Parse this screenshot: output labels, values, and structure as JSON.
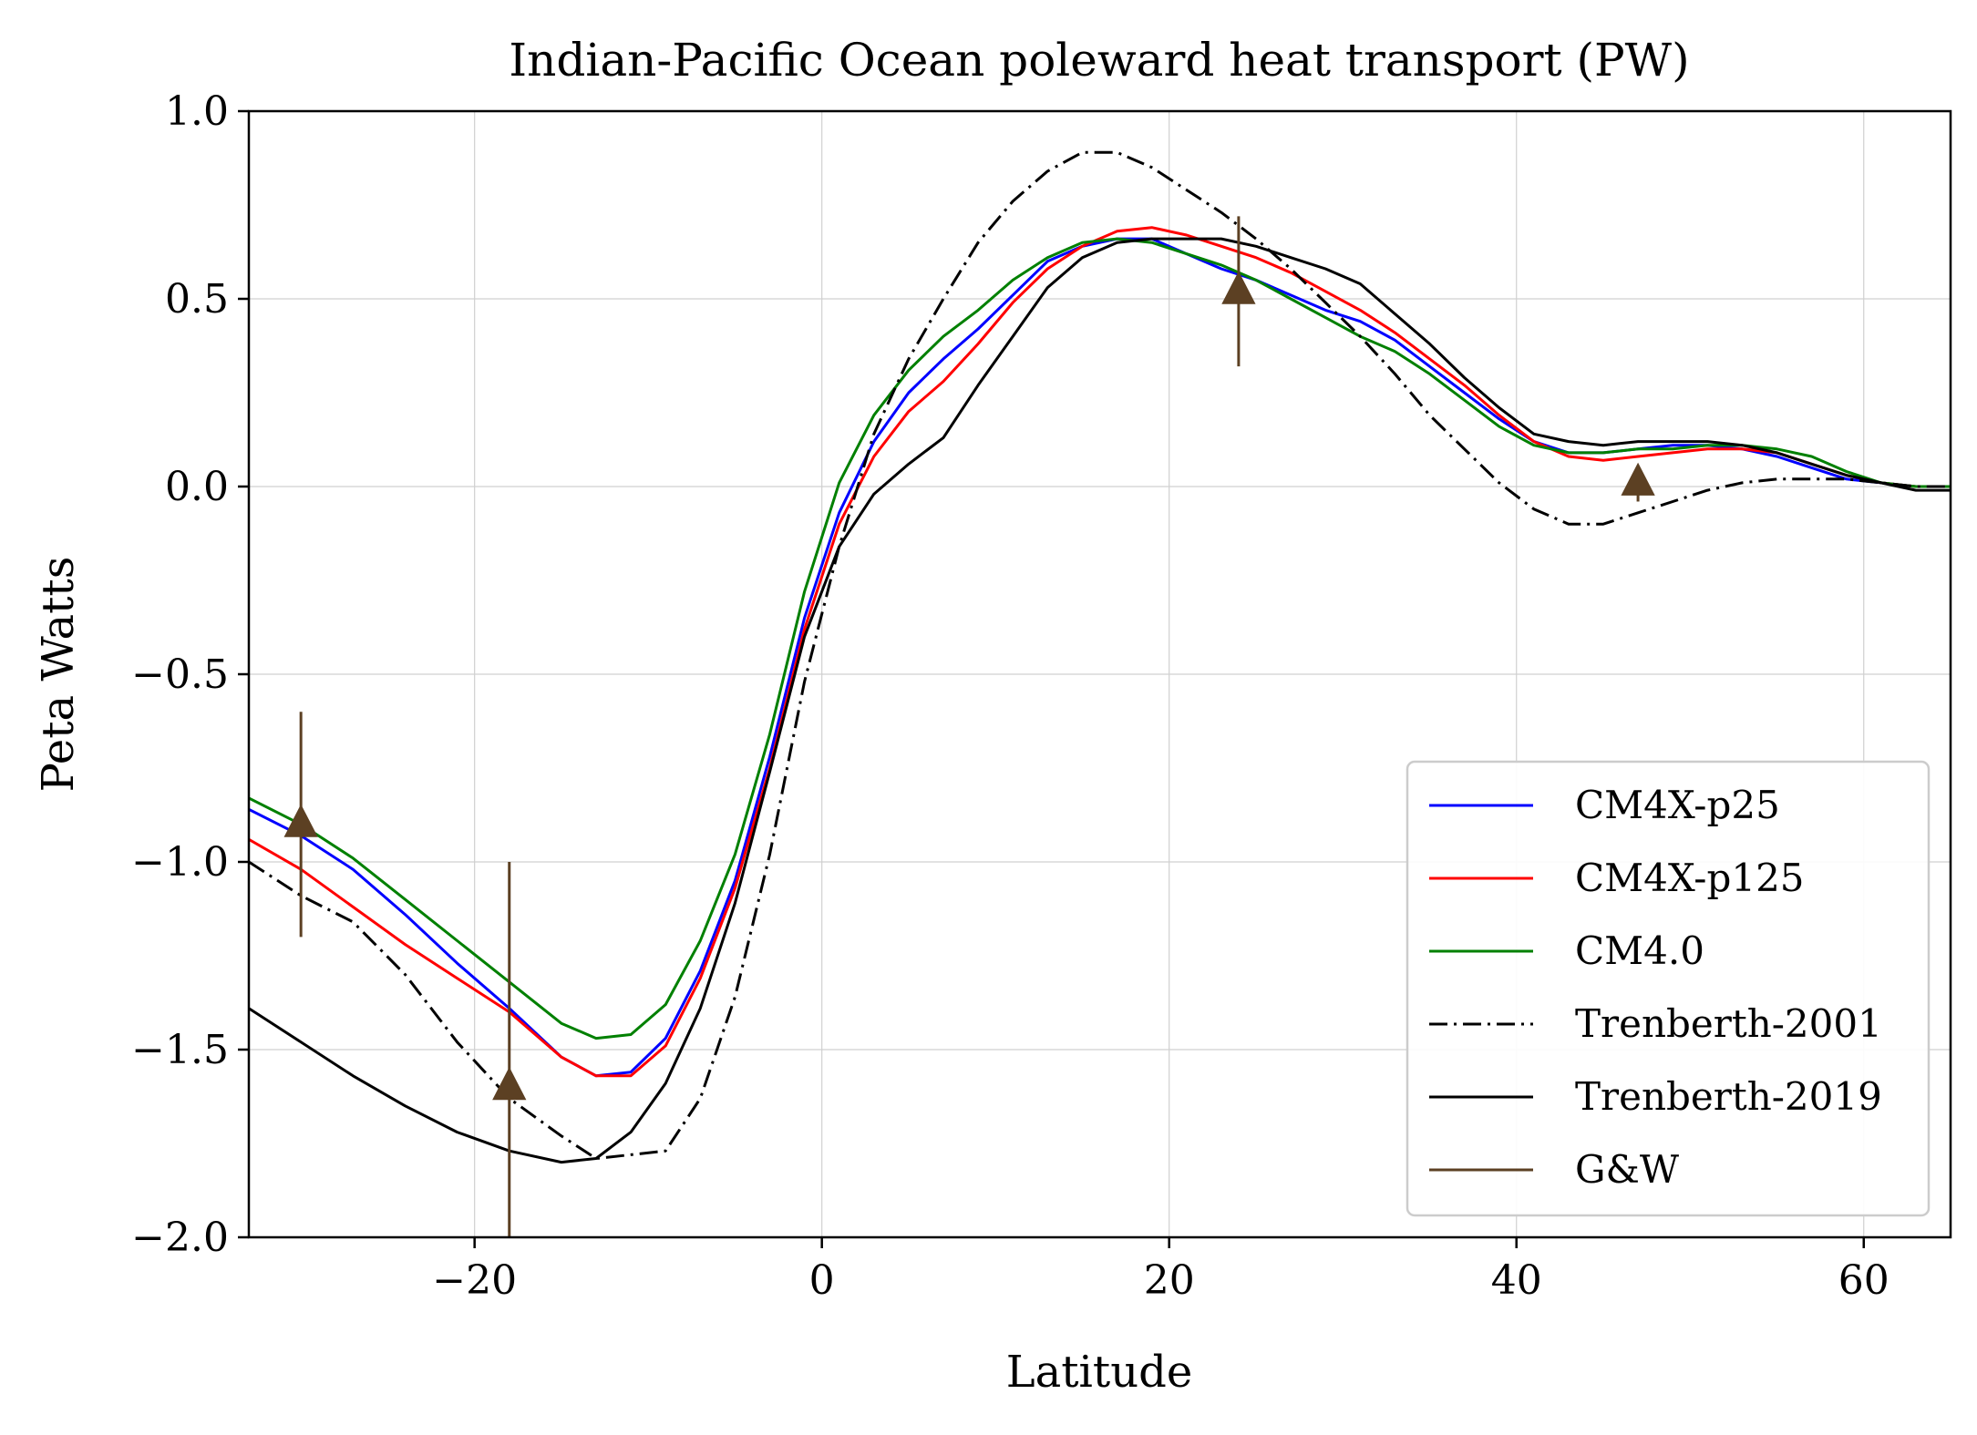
{
  "chart_data": {
    "type": "line",
    "title": "Indian-Pacific Ocean poleward heat transport (PW)",
    "xlabel": "Latitude",
    "ylabel": "Peta Watts",
    "xlim": [
      -33,
      65
    ],
    "ylim": [
      -2.0,
      1.0
    ],
    "xticks": [
      -20,
      0,
      20,
      40,
      60
    ],
    "xtick_labels": [
      "−20",
      "0",
      "20",
      "40",
      "60"
    ],
    "yticks": [
      1.0,
      0.5,
      0.0,
      -0.5,
      -1.0,
      -1.5,
      -2.0
    ],
    "ytick_labels": [
      "1.0",
      "0.5",
      "0.0",
      "−0.5",
      "−1.0",
      "−1.5",
      "−2.0"
    ],
    "grid": true,
    "legend_position": "lower-right",
    "series": [
      {
        "name": "CM4X-p25",
        "color": "#0000ff",
        "style": "solid",
        "x": [
          -33,
          -30,
          -27,
          -24,
          -21,
          -18,
          -15,
          -13,
          -11,
          -9,
          -7,
          -5,
          -3,
          -1,
          1,
          3,
          5,
          7,
          9,
          11,
          13,
          15,
          17,
          19,
          21,
          23,
          25,
          27,
          29,
          31,
          33,
          35,
          37,
          39,
          41,
          43,
          45,
          47,
          49,
          51,
          53,
          55,
          57,
          59,
          61,
          63,
          65
        ],
        "y": [
          -0.86,
          -0.93,
          -1.02,
          -1.14,
          -1.27,
          -1.39,
          -1.52,
          -1.57,
          -1.56,
          -1.47,
          -1.29,
          -1.05,
          -0.72,
          -0.35,
          -0.07,
          0.12,
          0.25,
          0.34,
          0.42,
          0.51,
          0.6,
          0.64,
          0.66,
          0.66,
          0.62,
          0.58,
          0.55,
          0.51,
          0.47,
          0.44,
          0.39,
          0.32,
          0.25,
          0.18,
          0.12,
          0.09,
          0.09,
          0.1,
          0.11,
          0.11,
          0.1,
          0.08,
          0.05,
          0.02,
          0.01,
          0.0,
          0.0
        ]
      },
      {
        "name": "CM4X-p125",
        "color": "#ff0000",
        "style": "solid",
        "x": [
          -33,
          -30,
          -27,
          -24,
          -21,
          -18,
          -15,
          -13,
          -11,
          -9,
          -7,
          -5,
          -3,
          -1,
          1,
          3,
          5,
          7,
          9,
          11,
          13,
          15,
          17,
          19,
          21,
          23,
          25,
          27,
          29,
          31,
          33,
          35,
          37,
          39,
          41,
          43,
          45,
          47,
          49,
          51,
          53,
          55,
          57,
          59,
          61,
          63,
          65
        ],
        "y": [
          -0.94,
          -1.02,
          -1.12,
          -1.22,
          -1.31,
          -1.4,
          -1.52,
          -1.57,
          -1.57,
          -1.49,
          -1.31,
          -1.07,
          -0.75,
          -0.38,
          -0.1,
          0.08,
          0.2,
          0.28,
          0.38,
          0.49,
          0.58,
          0.64,
          0.68,
          0.69,
          0.67,
          0.64,
          0.61,
          0.57,
          0.52,
          0.47,
          0.41,
          0.34,
          0.27,
          0.19,
          0.12,
          0.08,
          0.07,
          0.08,
          0.09,
          0.1,
          0.1,
          0.09,
          0.06,
          0.03,
          0.01,
          0.0,
          0.0
        ]
      },
      {
        "name": "CM4.0",
        "color": "#008000",
        "style": "solid",
        "x": [
          -33,
          -30,
          -27,
          -24,
          -21,
          -18,
          -15,
          -13,
          -11,
          -9,
          -7,
          -5,
          -3,
          -1,
          1,
          3,
          5,
          7,
          9,
          11,
          13,
          15,
          17,
          19,
          21,
          23,
          25,
          27,
          29,
          31,
          33,
          35,
          37,
          39,
          41,
          43,
          45,
          47,
          49,
          51,
          53,
          55,
          57,
          59,
          61,
          63,
          65
        ],
        "y": [
          -0.83,
          -0.9,
          -0.99,
          -1.1,
          -1.21,
          -1.32,
          -1.43,
          -1.47,
          -1.46,
          -1.38,
          -1.21,
          -0.98,
          -0.66,
          -0.28,
          0.01,
          0.19,
          0.31,
          0.4,
          0.47,
          0.55,
          0.61,
          0.65,
          0.66,
          0.65,
          0.62,
          0.59,
          0.55,
          0.5,
          0.45,
          0.4,
          0.36,
          0.3,
          0.23,
          0.16,
          0.11,
          0.09,
          0.09,
          0.1,
          0.1,
          0.11,
          0.11,
          0.1,
          0.08,
          0.04,
          0.01,
          0.0,
          0.0
        ]
      },
      {
        "name": "Trenberth-2001",
        "color": "#000000",
        "style": "dashdot",
        "x": [
          -33,
          -30,
          -27,
          -24,
          -21,
          -18,
          -15,
          -13,
          -11,
          -9,
          -7,
          -5,
          -3,
          -1,
          1,
          3,
          5,
          7,
          9,
          11,
          13,
          15,
          17,
          19,
          21,
          23,
          25,
          27,
          29,
          31,
          33,
          35,
          37,
          39,
          41,
          43,
          45,
          47,
          49,
          51,
          53,
          55,
          57,
          59,
          61,
          63,
          65
        ],
        "y": [
          -1.0,
          -1.09,
          -1.16,
          -1.3,
          -1.48,
          -1.63,
          -1.73,
          -1.79,
          -1.78,
          -1.77,
          -1.63,
          -1.36,
          -0.98,
          -0.52,
          -0.16,
          0.14,
          0.34,
          0.5,
          0.65,
          0.76,
          0.84,
          0.89,
          0.89,
          0.85,
          0.79,
          0.73,
          0.66,
          0.58,
          0.49,
          0.4,
          0.3,
          0.19,
          0.1,
          0.01,
          -0.06,
          -0.1,
          -0.1,
          -0.07,
          -0.04,
          -0.01,
          0.01,
          0.02,
          0.02,
          0.02,
          0.01,
          0.0,
          0.0
        ]
      },
      {
        "name": "Trenberth-2019",
        "color": "#000000",
        "style": "solid",
        "x": [
          -33,
          -30,
          -27,
          -24,
          -21,
          -18,
          -15,
          -13,
          -11,
          -9,
          -7,
          -5,
          -3,
          -1,
          1,
          3,
          5,
          7,
          9,
          11,
          13,
          15,
          17,
          19,
          21,
          23,
          25,
          27,
          29,
          31,
          33,
          35,
          37,
          39,
          41,
          43,
          45,
          47,
          49,
          51,
          53,
          55,
          57,
          59,
          61,
          63,
          65
        ],
        "y": [
          -1.39,
          -1.48,
          -1.57,
          -1.65,
          -1.72,
          -1.77,
          -1.8,
          -1.79,
          -1.72,
          -1.59,
          -1.39,
          -1.11,
          -0.76,
          -0.4,
          -0.16,
          -0.02,
          0.06,
          0.13,
          0.27,
          0.4,
          0.53,
          0.61,
          0.65,
          0.66,
          0.66,
          0.66,
          0.64,
          0.61,
          0.58,
          0.54,
          0.46,
          0.38,
          0.29,
          0.21,
          0.14,
          0.12,
          0.11,
          0.12,
          0.12,
          0.12,
          0.11,
          0.09,
          0.06,
          0.03,
          0.01,
          -0.01,
          -0.01
        ]
      }
    ],
    "observations": {
      "name": "G&W",
      "color": "#5c4023",
      "points": [
        {
          "x": -30,
          "y": -0.9,
          "err_low": -1.2,
          "err_high": -0.6
        },
        {
          "x": -18,
          "y": -1.6,
          "err_low": -2.0,
          "err_high": -1.0
        },
        {
          "x": 24,
          "y": 0.52,
          "err_low": 0.32,
          "err_high": 0.72
        },
        {
          "x": 47,
          "y": 0.01,
          "err_low": -0.04,
          "err_high": 0.04
        }
      ]
    },
    "legend": [
      "CM4X-p25",
      "CM4X-p125",
      "CM4.0",
      "Trenberth-2001",
      "Trenberth-2019",
      "G&W"
    ]
  }
}
